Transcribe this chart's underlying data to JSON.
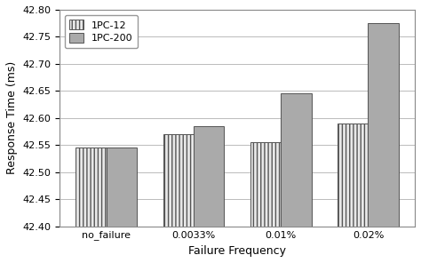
{
  "categories": [
    "no_failure",
    "0.0033%",
    "0.01%",
    "0.02%"
  ],
  "series": {
    "1PC-12": [
      42.545,
      42.57,
      42.555,
      42.59
    ],
    "1PC-200": [
      42.545,
      42.585,
      42.645,
      42.775
    ]
  },
  "bar_colors": {
    "1PC-12": "#e8e8e8",
    "1PC-200": "#aaaaaa"
  },
  "hatch": {
    "1PC-12": "||||",
    "1PC-200": ""
  },
  "xlabel": "Failure Frequency",
  "ylabel": "Response Time (ms)",
  "ylim": [
    42.4,
    42.8
  ],
  "ybase": 42.4,
  "yticks": [
    42.4,
    42.45,
    42.5,
    42.55,
    42.6,
    42.65,
    42.7,
    42.75,
    42.8
  ],
  "legend_labels": [
    "1PC-12",
    "1PC-200"
  ],
  "bar_width": 0.35,
  "background_color": "#ffffff",
  "grid_color": "#bbbbbb",
  "edge_color": "#555555",
  "axis_fontsize": 9,
  "tick_fontsize": 8,
  "legend_fontsize": 8
}
